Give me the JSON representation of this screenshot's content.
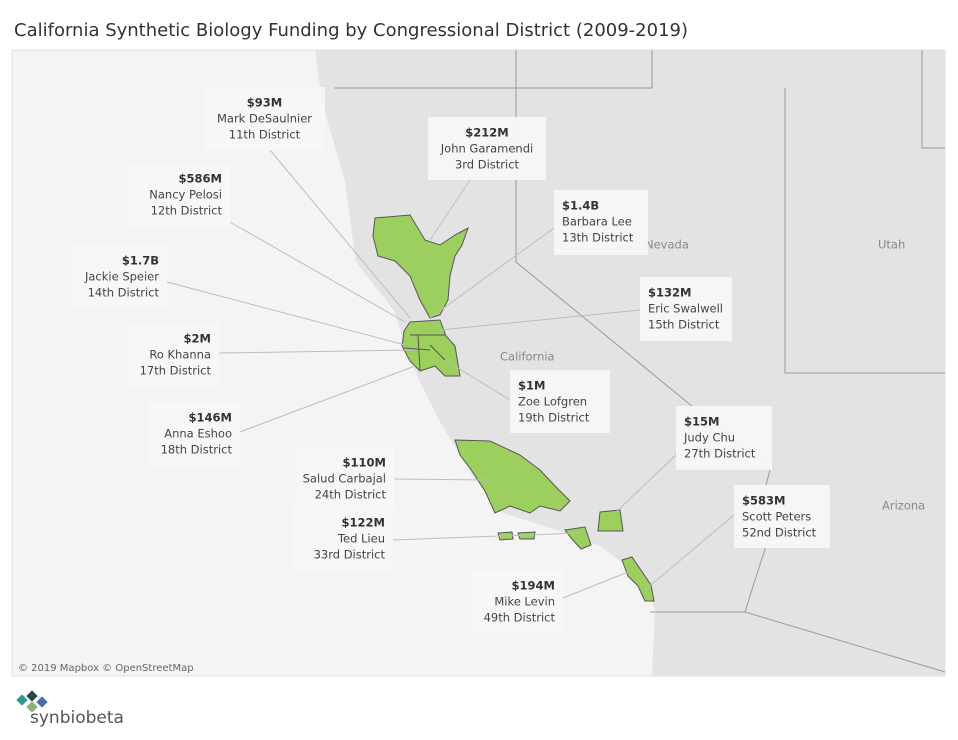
{
  "title": "California Synthetic Biology Funding by Congressional District (2009-2019)",
  "map_labels": [
    "Nevada",
    "Utah",
    "California",
    "Arizona"
  ],
  "attribution": "© 2019 Mapbox © OpenStreetMap",
  "logo": "synbiobeta",
  "callouts": [
    {
      "amount": "$93M",
      "name": "Mark DeSaulnier",
      "district": "11th District"
    },
    {
      "amount": "$212M",
      "name": "John Garamendi",
      "district": "3rd District"
    },
    {
      "amount": "$586M",
      "name": "Nancy Pelosi",
      "district": "12th District"
    },
    {
      "amount": "$1.4B",
      "name": "Barbara Lee",
      "district": "13th District"
    },
    {
      "amount": "$1.7B",
      "name": "Jackie Speier",
      "district": "14th District"
    },
    {
      "amount": "$132M",
      "name": "Eric Swalwell",
      "district": "15th District"
    },
    {
      "amount": "$2M",
      "name": "Ro Khanna",
      "district": "17th District"
    },
    {
      "amount": "$1M",
      "name": "Zoe Lofgren",
      "district": "19th District"
    },
    {
      "amount": "$146M",
      "name": "Anna Eshoo",
      "district": "18th District"
    },
    {
      "amount": "$15M",
      "name": "Judy Chu",
      "district": "27th District"
    },
    {
      "amount": "$110M",
      "name": "Salud Carbajal",
      "district": "24th District"
    },
    {
      "amount": "$583M",
      "name": "Scott Peters",
      "district": "52nd District"
    },
    {
      "amount": "$122M",
      "name": "Ted Lieu",
      "district": "33rd District"
    },
    {
      "amount": "$194M",
      "name": "Mike Levin",
      "district": "49th District"
    }
  ]
}
